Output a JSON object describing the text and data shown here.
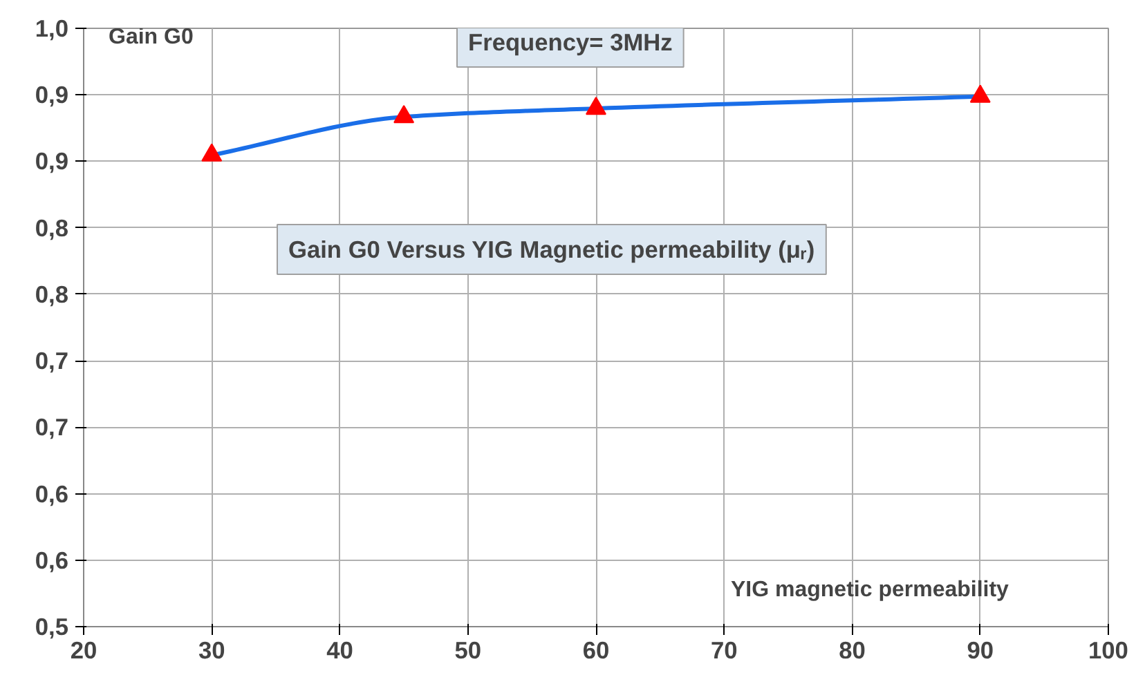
{
  "chart_data": {
    "type": "line",
    "title": "Gain G0 Versus YIG Magnetic permeability (μᵣ)",
    "subtitle": "Frequency= 3MHz",
    "xlabel": "YIG magnetic permeability",
    "ylabel": "Gain G0",
    "x": [
      30,
      45,
      60,
      90
    ],
    "series": [
      {
        "color": "#1a6ee8",
        "values": [
          0.894,
          0.926,
          0.933,
          0.943
        ],
        "marker": "none"
      },
      {
        "type": "scatter",
        "color": "#ff0000",
        "values": [
          0.894,
          0.926,
          0.933,
          0.943
        ],
        "marker": "triangle"
      }
    ],
    "xlim": [
      20,
      100
    ],
    "xticks": [
      20,
      30,
      40,
      50,
      60,
      70,
      80,
      90,
      100
    ],
    "ylim": [
      0.5,
      1.0
    ],
    "yticks": [
      {
        "value": 0.5,
        "label": "0,5"
      },
      {
        "value": 0.5556,
        "label": "0,6"
      },
      {
        "value": 0.6111,
        "label": "0,6"
      },
      {
        "value": 0.6667,
        "label": "0,7"
      },
      {
        "value": 0.7222,
        "label": "0,7"
      },
      {
        "value": 0.7778,
        "label": "0,8"
      },
      {
        "value": 0.8333,
        "label": "0,8"
      },
      {
        "value": 0.8889,
        "label": "0,9"
      },
      {
        "value": 0.9444,
        "label": "0,9"
      },
      {
        "value": 1.0,
        "label": "1,0"
      }
    ],
    "grid": true
  }
}
